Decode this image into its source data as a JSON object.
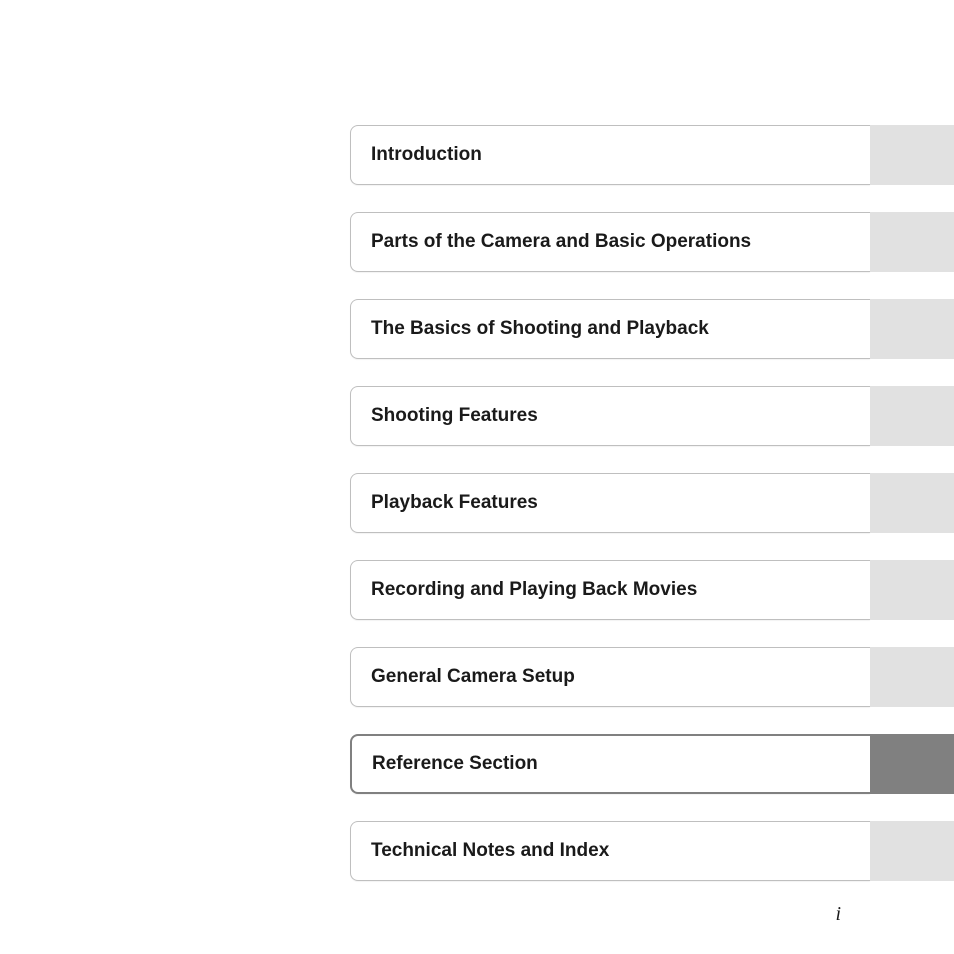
{
  "toc": {
    "items": [
      {
        "label": "Introduction",
        "tab_color": "#e1e1e1",
        "selected": false
      },
      {
        "label": "Parts of the Camera and Basic Operations",
        "tab_color": "#e1e1e1",
        "selected": false
      },
      {
        "label": "The Basics of Shooting and Playback",
        "tab_color": "#e1e1e1",
        "selected": false
      },
      {
        "label": "Shooting Features",
        "tab_color": "#e1e1e1",
        "selected": false
      },
      {
        "label": "Playback Features",
        "tab_color": "#e1e1e1",
        "selected": false
      },
      {
        "label": "Recording and Playing Back Movies",
        "tab_color": "#e1e1e1",
        "selected": false
      },
      {
        "label": "General Camera Setup",
        "tab_color": "#e1e1e1",
        "selected": false
      },
      {
        "label": "Reference Section",
        "tab_color": "#808080",
        "selected": true
      },
      {
        "label": "Technical Notes and Index",
        "tab_color": "#e1e1e1",
        "selected": false
      }
    ]
  },
  "page_number": "i",
  "layout": {
    "item_height": 60,
    "item_gap": 27,
    "label_fontsize": 19,
    "label_fontweight": 700,
    "border_color": "#bfbfbf",
    "selected_border_color": "#808080",
    "border_radius": 8,
    "tab_width": 84,
    "background_color": "#ffffff",
    "text_color": "#1a1a1a"
  }
}
